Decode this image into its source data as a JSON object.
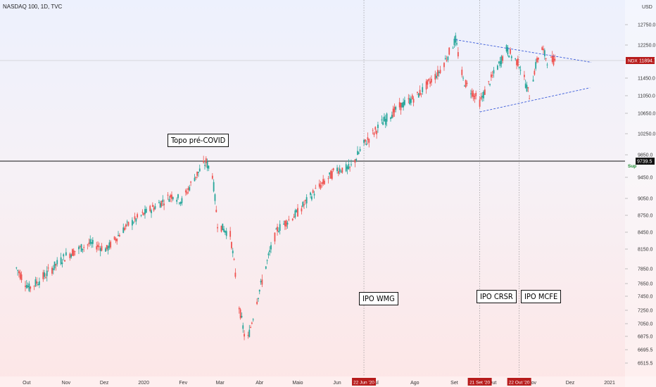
{
  "header": {
    "title": "NASDAQ 100, 1D, TVC"
  },
  "chart_data": {
    "type": "candlestick",
    "symbol": "NDX",
    "last_price": 11894.7,
    "last_price_label": "11894.7",
    "currency_label": "USD",
    "ylim": [
      6400,
      12900
    ],
    "y_ticks": [
      12750.0,
      12250.0,
      11450.0,
      11050.0,
      10650.0,
      10250.0,
      9850.0,
      9450.0,
      9050.0,
      8750.0,
      8450.0,
      8150.0,
      7850.0,
      7650.0,
      7450.0,
      7250.0,
      7050.0,
      6875.0,
      6695.5,
      6515.5
    ],
    "y_tick_labels": [
      "12750.0",
      "12250.0",
      "11450.0",
      "11050.0",
      "10650.0",
      "10250.0",
      "9850.0",
      "9450.0",
      "9050.0",
      "8750.0",
      "8450.0",
      "8150.0",
      "7850.0",
      "7650.0",
      "7450.0",
      "7250.0",
      "7050.0",
      "6875.0",
      "6695.5",
      "6515.5"
    ],
    "x_tick_labels": [
      {
        "label": "Out",
        "date": "2019-10-01"
      },
      {
        "label": "Nov",
        "date": "2019-11-01"
      },
      {
        "label": "Dez",
        "date": "2019-12-01"
      },
      {
        "label": "2020",
        "date": "2020-01-01"
      },
      {
        "label": "Fev",
        "date": "2020-02-01"
      },
      {
        "label": "Mar",
        "date": "2020-03-01"
      },
      {
        "label": "Abr",
        "date": "2020-04-01"
      },
      {
        "label": "Maio",
        "date": "2020-05-01"
      },
      {
        "label": "Jun",
        "date": "2020-06-01"
      },
      {
        "label": "Jul",
        "date": "2020-07-01"
      },
      {
        "label": "Ago",
        "date": "2020-08-01"
      },
      {
        "label": "Set",
        "date": "2020-09-01"
      },
      {
        "label": "Out",
        "date": "2020-10-01"
      },
      {
        "label": "Nov",
        "date": "2020-11-01"
      },
      {
        "label": "Dez",
        "date": "2020-12-01"
      },
      {
        "label": "2021",
        "date": "2021-01-01"
      }
    ],
    "support_line": {
      "value": 9739.5,
      "label": "9739.5",
      "name": "Sup"
    },
    "price_path": [
      {
        "date": "2019-09-23",
        "close": 7860
      },
      {
        "date": "2019-10-03",
        "close": 7580
      },
      {
        "date": "2019-10-15",
        "close": 7750
      },
      {
        "date": "2019-11-01",
        "close": 8050
      },
      {
        "date": "2019-11-20",
        "close": 8250
      },
      {
        "date": "2019-12-03",
        "close": 8150
      },
      {
        "date": "2019-12-18",
        "close": 8550
      },
      {
        "date": "2020-01-02",
        "close": 8790
      },
      {
        "date": "2020-01-24",
        "close": 9120
      },
      {
        "date": "2020-01-31",
        "close": 9000
      },
      {
        "date": "2020-02-10",
        "close": 9450
      },
      {
        "date": "2020-02-19",
        "close": 9720
      },
      {
        "date": "2020-02-24",
        "close": 9500
      },
      {
        "date": "2020-02-28",
        "close": 8600
      },
      {
        "date": "2020-03-09",
        "close": 8400
      },
      {
        "date": "2020-03-16",
        "close": 7300
      },
      {
        "date": "2020-03-20",
        "close": 6900
      },
      {
        "date": "2020-03-23",
        "close": 6850
      },
      {
        "date": "2020-04-01",
        "close": 7550
      },
      {
        "date": "2020-04-15",
        "close": 8500
      },
      {
        "date": "2020-05-01",
        "close": 8800
      },
      {
        "date": "2020-05-15",
        "close": 9200
      },
      {
        "date": "2020-06-01",
        "close": 9600
      },
      {
        "date": "2020-06-11",
        "close": 9600
      },
      {
        "date": "2020-06-22",
        "close": 10050
      },
      {
        "date": "2020-07-06",
        "close": 10450
      },
      {
        "date": "2020-07-20",
        "close": 10800
      },
      {
        "date": "2020-08-03",
        "close": 11050
      },
      {
        "date": "2020-08-20",
        "close": 11600
      },
      {
        "date": "2020-09-02",
        "close": 12380
      },
      {
        "date": "2020-09-08",
        "close": 11400
      },
      {
        "date": "2020-09-21",
        "close": 10900
      },
      {
        "date": "2020-10-12",
        "close": 12150
      },
      {
        "date": "2020-10-22",
        "close": 11800
      },
      {
        "date": "2020-10-30",
        "close": 11050
      },
      {
        "date": "2020-11-05",
        "close": 11900
      },
      {
        "date": "2020-11-09",
        "close": 12150
      },
      {
        "date": "2020-11-13",
        "close": 11900
      },
      {
        "date": "2020-11-20",
        "close": 11894.7
      }
    ],
    "event_markers": [
      {
        "date": "2020-06-22",
        "date_label": "22 Jun '20",
        "annotation": "IPO WMG"
      },
      {
        "date": "2020-09-21",
        "date_label": "21 Set '20",
        "annotation": "IPO CRSR"
      },
      {
        "date": "2020-10-22",
        "date_label": "22 Out '20",
        "annotation": "IPO MCFE"
      }
    ],
    "annotations": [
      {
        "text": "Topo pré-COVID",
        "date": "2020-02-19"
      }
    ],
    "trendlines": [
      {
        "name": "upper",
        "from": {
          "date": "2020-09-02",
          "value": 12380
        },
        "to": {
          "date": "2020-12-01",
          "value": 11900
        }
      },
      {
        "name": "lower",
        "from": {
          "date": "2020-09-21",
          "value": 10680
        },
        "to": {
          "date": "2020-11-30",
          "value": 11200
        }
      }
    ],
    "colors": {
      "up": "#26a69a",
      "down": "#ef5350",
      "support": "#111111",
      "trend": "#3a5bd9",
      "badge": "#b71c1c",
      "text": "#333333",
      "sup_label": "#1b8a2e"
    }
  }
}
